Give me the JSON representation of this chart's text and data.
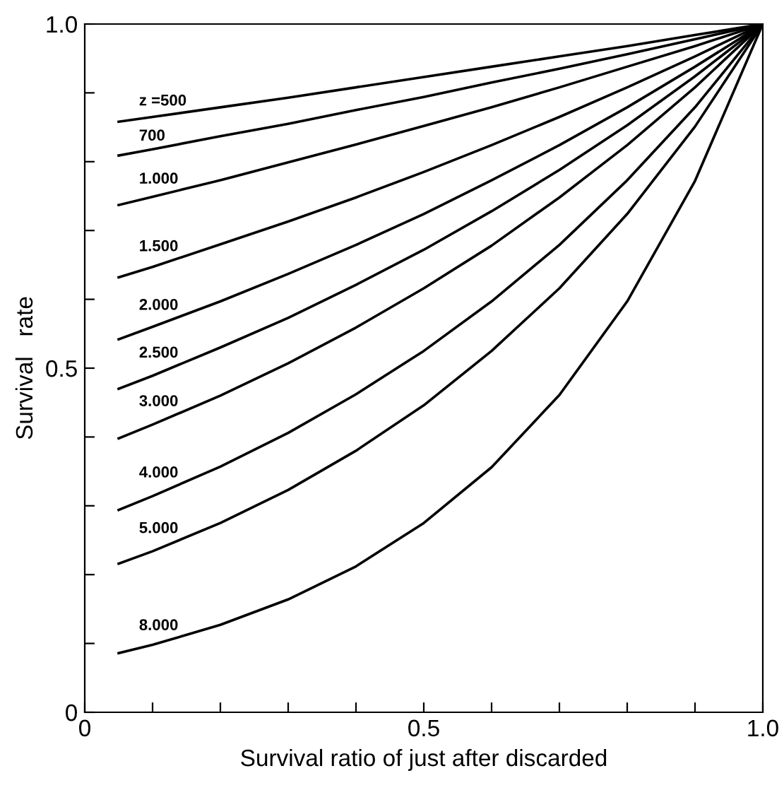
{
  "chart_data": {
    "type": "line",
    "xlabel": "Survival ratio of just after discarded",
    "ylabel": "Survival   rate",
    "x": [
      0.05,
      0.1,
      0.2,
      0.3,
      0.4,
      0.5,
      0.6,
      0.7,
      0.8,
      0.9,
      1.0
    ],
    "series": [
      {
        "name": "z =500",
        "color": "#000000",
        "values": [
          0.858,
          0.865,
          0.879,
          0.893,
          0.908,
          0.923,
          0.938,
          0.953,
          0.968,
          0.984,
          1.0
        ]
      },
      {
        "name": "700",
        "color": "#000000",
        "values": [
          0.809,
          0.818,
          0.837,
          0.855,
          0.875,
          0.894,
          0.915,
          0.935,
          0.956,
          0.978,
          1.0
        ]
      },
      {
        "name": "1.000",
        "color": "#000000",
        "values": [
          0.737,
          0.749,
          0.773,
          0.799,
          0.825,
          0.852,
          0.879,
          0.908,
          0.938,
          0.968,
          1.0
        ]
      },
      {
        "name": "1.500",
        "color": "#000000",
        "values": [
          0.632,
          0.647,
          0.68,
          0.713,
          0.748,
          0.785,
          0.824,
          0.865,
          0.908,
          0.953,
          1.0
        ]
      },
      {
        "name": "2.000",
        "color": "#000000",
        "values": [
          0.542,
          0.56,
          0.597,
          0.637,
          0.679,
          0.724,
          0.773,
          0.824,
          0.879,
          0.938,
          1.0
        ]
      },
      {
        "name": "2.500",
        "color": "#000000",
        "values": [
          0.47,
          0.489,
          0.53,
          0.573,
          0.621,
          0.672,
          0.728,
          0.788,
          0.853,
          0.924,
          1.0
        ]
      },
      {
        "name": "3.000",
        "color": "#000000",
        "values": [
          0.398,
          0.418,
          0.46,
          0.507,
          0.559,
          0.616,
          0.678,
          0.748,
          0.824,
          0.908,
          1.0
        ]
      },
      {
        "name": "4.000",
        "color": "#000000",
        "values": [
          0.294,
          0.314,
          0.357,
          0.406,
          0.462,
          0.525,
          0.597,
          0.679,
          0.773,
          0.879,
          1.0
        ]
      },
      {
        "name": "5.000",
        "color": "#000000",
        "values": [
          0.216,
          0.234,
          0.275,
          0.323,
          0.38,
          0.446,
          0.525,
          0.616,
          0.724,
          0.851,
          1.0
        ]
      },
      {
        "name": "8.000",
        "color": "#000000",
        "values": [
          0.086,
          0.098,
          0.127,
          0.164,
          0.212,
          0.275,
          0.356,
          0.461,
          0.597,
          0.772,
          1.0
        ]
      }
    ],
    "xlim": [
      0,
      1.0
    ],
    "ylim": [
      0,
      1.0
    ],
    "xticks": [
      0,
      {
        "value": 0.1,
        "label": null
      },
      {
        "value": 0.2,
        "label": null
      },
      {
        "value": 0.3,
        "label": null
      },
      {
        "value": 0.4,
        "label": null
      },
      0.5,
      {
        "value": 0.6,
        "label": null
      },
      {
        "value": 0.7,
        "label": null
      },
      {
        "value": 0.8,
        "label": null
      },
      {
        "value": 0.9,
        "label": null
      },
      {
        "value": 1.0,
        "label": "1.0"
      }
    ],
    "yticks": [
      0,
      {
        "value": 0.1,
        "label": null
      },
      {
        "value": 0.2,
        "label": null
      },
      {
        "value": 0.3,
        "label": null
      },
      {
        "value": 0.4,
        "label": null
      },
      0.5,
      {
        "value": 0.6,
        "label": null
      },
      {
        "value": 0.7,
        "label": null
      },
      {
        "value": 0.8,
        "label": null
      },
      {
        "value": 0.9,
        "label": null
      },
      {
        "value": 1.0,
        "label": "1.0"
      }
    ],
    "grid": false,
    "legend": false,
    "marker": "none",
    "line_style": "solid"
  }
}
